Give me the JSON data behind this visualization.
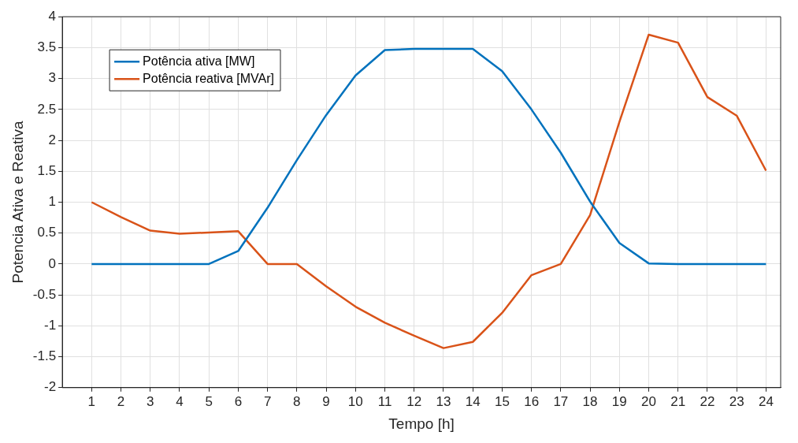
{
  "chart_data": {
    "type": "line",
    "xlabel": "Tempo [h]",
    "ylabel": "Potencia Ativa e Reativa",
    "x": [
      1,
      2,
      3,
      4,
      5,
      6,
      7,
      8,
      9,
      10,
      11,
      12,
      13,
      14,
      15,
      16,
      17,
      18,
      19,
      20,
      21,
      22,
      23,
      24
    ],
    "series": [
      {
        "name": "Potência ativa [MW]",
        "color": "#0072bd",
        "values": [
          0,
          0,
          0,
          0,
          0,
          0.21,
          0.91,
          1.68,
          2.41,
          3.05,
          3.46,
          3.48,
          3.48,
          3.48,
          3.12,
          2.5,
          1.8,
          1.01,
          0.34,
          0.01,
          0,
          0,
          0,
          0
        ]
      },
      {
        "name": "Potência reativa [MVAr]",
        "color": "#d95319",
        "values": [
          1.0,
          0.76,
          0.54,
          0.49,
          0.51,
          0.53,
          0,
          0,
          -0.36,
          -0.69,
          -0.95,
          -1.16,
          -1.36,
          -1.26,
          -0.79,
          -0.18,
          0,
          0.79,
          2.3,
          3.71,
          3.58,
          2.7,
          2.4,
          1.51
        ]
      }
    ],
    "xlim": [
      0,
      24.5
    ],
    "xticks": [
      1,
      2,
      3,
      4,
      5,
      6,
      7,
      8,
      9,
      10,
      11,
      12,
      13,
      14,
      15,
      16,
      17,
      18,
      19,
      20,
      21,
      22,
      23,
      24
    ],
    "ylim": [
      -2,
      4
    ],
    "yticks": [
      -2,
      -1.5,
      -1,
      -0.5,
      0,
      0.5,
      1,
      1.5,
      2,
      2.5,
      3,
      3.5,
      4
    ],
    "grid": true,
    "legend": "top left",
    "marker": "none",
    "line_style": "solid"
  }
}
